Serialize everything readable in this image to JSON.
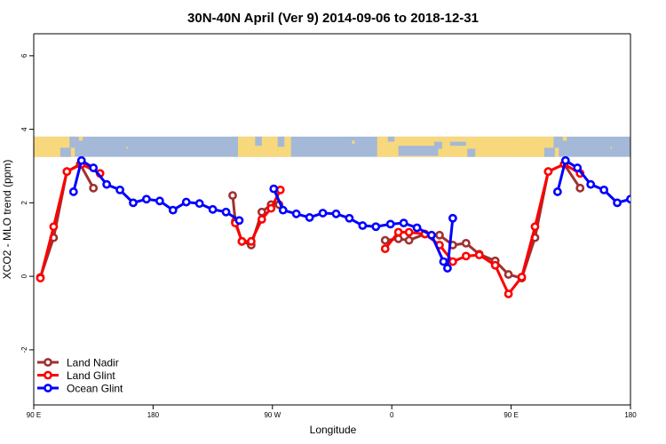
{
  "chart_data": {
    "type": "line",
    "title": "30N-40N April (Ver 9)   2014-09-06 to 2018-12-31",
    "xlabel": "Longitude",
    "ylabel": "XCO2 - MLO trend (ppm)",
    "x_axis": {
      "range_deg": [
        90,
        540
      ],
      "ticks": [
        {
          "value": 90,
          "label": "90 E"
        },
        {
          "value": 180,
          "label": "180"
        },
        {
          "value": 270,
          "label": "90 W"
        },
        {
          "value": 360,
          "label": "0"
        },
        {
          "value": 450,
          "label": "90 E"
        },
        {
          "value": 540,
          "label": "180"
        }
      ]
    },
    "y_axis": {
      "range": [
        -3.5,
        6.6
      ],
      "ticks": [
        -2,
        0,
        2,
        4,
        6
      ]
    },
    "map_strip": {
      "ymin": 3.25,
      "ymax": 3.8,
      "ocean_color": "#a4b8d8",
      "land_color": "#f8d87c"
    },
    "legend_position": "bottom-left",
    "series": [
      {
        "name": "Land Nadir",
        "color": "#a03030",
        "segments": [
          [
            [
              95,
              -0.03
            ],
            [
              105,
              1.05
            ],
            [
              115,
              2.85
            ],
            [
              125,
              3.05
            ],
            [
              135,
              2.4
            ]
          ],
          [
            [
              240,
              2.2
            ],
            [
              242,
              1.5
            ],
            [
              247,
              0.95
            ],
            [
              254,
              0.85
            ],
            [
              262,
              1.75
            ],
            [
              269,
              1.95
            ],
            [
              275,
              1.95
            ]
          ],
          [
            [
              355,
              0.98
            ],
            [
              365,
              1.02
            ],
            [
              373,
              0.98
            ],
            [
              385,
              1.15
            ],
            [
              396,
              1.12
            ],
            [
              406,
              0.85
            ],
            [
              416,
              0.9
            ],
            [
              426,
              0.6
            ],
            [
              438,
              0.42
            ],
            [
              448,
              0.05
            ],
            [
              458,
              -0.05
            ],
            [
              468,
              1.05
            ],
            [
              478,
              2.85
            ],
            [
              490,
              3.05
            ],
            [
              502,
              2.4
            ]
          ]
        ]
      },
      {
        "name": "Land Glint",
        "color": "#ff0000",
        "segments": [
          [
            [
              95,
              -0.05
            ],
            [
              105,
              1.35
            ],
            [
              115,
              2.85
            ],
            [
              126,
              3.05
            ],
            [
              140,
              2.8
            ]
          ],
          [
            [
              242,
              1.45
            ],
            [
              247,
              0.95
            ],
            [
              254,
              0.95
            ],
            [
              262,
              1.55
            ],
            [
              269,
              1.85
            ],
            [
              276,
              2.35
            ]
          ],
          [
            [
              355,
              0.75
            ],
            [
              365,
              1.2
            ],
            [
              373,
              1.2
            ],
            [
              385,
              1.15
            ],
            [
              396,
              0.85
            ],
            [
              406,
              0.4
            ],
            [
              416,
              0.55
            ],
            [
              426,
              0.58
            ],
            [
              438,
              0.3
            ],
            [
              448,
              -0.48
            ],
            [
              458,
              -0.02
            ],
            [
              468,
              1.35
            ],
            [
              478,
              2.85
            ],
            [
              490,
              3.05
            ],
            [
              502,
              2.8
            ]
          ]
        ]
      },
      {
        "name": "Ocean Glint",
        "color": "#0000ff",
        "segments": [
          [
            [
              120,
              2.3
            ],
            [
              126,
              3.15
            ],
            [
              135,
              2.95
            ],
            [
              145,
              2.5
            ],
            [
              155,
              2.35
            ],
            [
              165,
              2.0
            ],
            [
              175,
              2.1
            ],
            [
              185,
              2.05
            ],
            [
              195,
              1.8
            ],
            [
              205,
              2.02
            ],
            [
              215,
              1.98
            ],
            [
              225,
              1.82
            ],
            [
              235,
              1.75
            ],
            [
              245,
              1.52
            ]
          ],
          [
            [
              271,
              2.38
            ],
            [
              278,
              1.8
            ],
            [
              288,
              1.7
            ],
            [
              298,
              1.6
            ],
            [
              308,
              1.72
            ],
            [
              318,
              1.7
            ],
            [
              328,
              1.58
            ],
            [
              338,
              1.38
            ],
            [
              348,
              1.35
            ],
            [
              359,
              1.42
            ],
            [
              369,
              1.45
            ],
            [
              379,
              1.32
            ],
            [
              390,
              1.12
            ],
            [
              399,
              0.4
            ],
            [
              402,
              0.22
            ],
            [
              406,
              1.58
            ]
          ],
          [
            [
              485,
              2.3
            ],
            [
              491,
              3.15
            ],
            [
              500,
              2.95
            ],
            [
              510,
              2.5
            ],
            [
              520,
              2.35
            ],
            [
              530,
              2.0
            ],
            [
              540,
              2.1
            ]
          ]
        ]
      }
    ]
  }
}
